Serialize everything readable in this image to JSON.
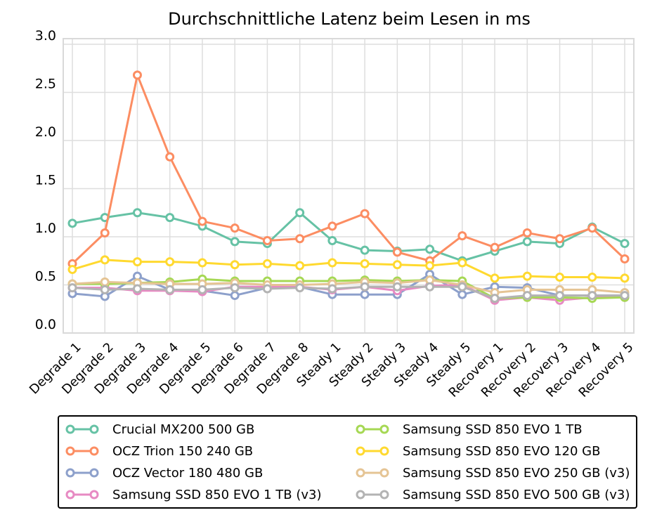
{
  "chart_data": {
    "type": "line",
    "title": "Durchschnittliche Latenz beim Lesen in ms",
    "xlabel": "",
    "ylabel": "",
    "ylim": [
      0,
      3.0
    ],
    "yticks": [
      "0.0",
      "0.5",
      "1.0",
      "1.5",
      "2.0",
      "2.5",
      "3.0"
    ],
    "ytick_values": [
      0,
      0.5,
      1.0,
      1.5,
      2.0,
      2.5,
      3.0
    ],
    "grid": true,
    "legend_position": "bottom",
    "categories": [
      "Degrade 1",
      "Degrade 2",
      "Degrade 3",
      "Degrade 4",
      "Degrade 5",
      "Degrade 6",
      "Degrade 7",
      "Degrade 8",
      "Steady 1",
      "Steady 2",
      "Steady 3",
      "Steady 4",
      "Steady 5",
      "Recovery 1",
      "Recovery 2",
      "Recovery 3",
      "Recovery 4",
      "Recovery 5"
    ],
    "series": [
      {
        "name": "Crucial MX200 500 GB",
        "color": "#66c2a5",
        "values": [
          1.14,
          1.2,
          1.25,
          1.2,
          1.11,
          0.95,
          0.93,
          1.25,
          0.96,
          0.86,
          0.85,
          0.87,
          0.75,
          0.85,
          0.95,
          0.93,
          1.1,
          0.93
        ]
      },
      {
        "name": "OCZ Trion 150 240 GB",
        "color": "#fc8d62",
        "values": [
          0.72,
          1.04,
          2.68,
          1.83,
          1.16,
          1.09,
          0.96,
          0.98,
          1.11,
          1.24,
          0.84,
          0.75,
          1.01,
          0.89,
          1.04,
          0.98,
          1.09,
          0.77
        ]
      },
      {
        "name": "OCZ Vector 180 480 GB",
        "color": "#8da0cb",
        "values": [
          0.41,
          0.38,
          0.59,
          0.45,
          0.44,
          0.39,
          0.47,
          0.48,
          0.4,
          0.4,
          0.4,
          0.61,
          0.4,
          0.48,
          0.47,
          0.39,
          0.39,
          0.39
        ]
      },
      {
        "name": "Samsung SSD 850 EVO 1 TB (v3)",
        "color": "#e78ac3",
        "values": [
          0.47,
          0.47,
          0.44,
          0.44,
          0.43,
          0.48,
          0.48,
          0.48,
          0.45,
          0.48,
          0.44,
          0.49,
          0.5,
          0.34,
          0.37,
          0.34,
          0.37,
          0.37
        ]
      },
      {
        "name": "Samsung SSD 850 EVO 1 TB",
        "color": "#a6d854",
        "values": [
          0.51,
          0.51,
          0.52,
          0.53,
          0.56,
          0.54,
          0.54,
          0.54,
          0.54,
          0.55,
          0.54,
          0.55,
          0.54,
          0.36,
          0.37,
          0.37,
          0.36,
          0.37
        ]
      },
      {
        "name": "Samsung SSD 850 EVO 120 GB",
        "color": "#ffd92f",
        "values": [
          0.66,
          0.76,
          0.74,
          0.74,
          0.73,
          0.71,
          0.72,
          0.7,
          0.73,
          0.72,
          0.71,
          0.7,
          0.73,
          0.57,
          0.59,
          0.58,
          0.58,
          0.57
        ]
      },
      {
        "name": "Samsung SSD 850 EVO 250 GB (v3)",
        "color": "#e5c494",
        "values": [
          0.51,
          0.53,
          0.52,
          0.51,
          0.51,
          0.52,
          0.5,
          0.5,
          0.51,
          0.53,
          0.52,
          0.55,
          0.5,
          0.42,
          0.45,
          0.45,
          0.45,
          0.42
        ]
      },
      {
        "name": "Samsung SSD 850 EVO 500 GB (v3)",
        "color": "#b3b3b3",
        "values": [
          0.47,
          0.45,
          0.46,
          0.45,
          0.45,
          0.47,
          0.46,
          0.47,
          0.46,
          0.48,
          0.48,
          0.48,
          0.48,
          0.36,
          0.39,
          0.39,
          0.39,
          0.39
        ]
      }
    ]
  }
}
